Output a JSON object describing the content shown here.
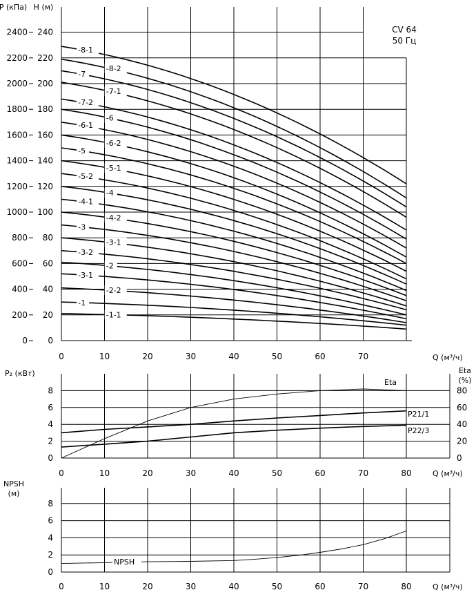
{
  "chart_data": [
    {
      "type": "line",
      "name": "head",
      "title": "",
      "legend": [
        "CV 64",
        "50 Гц"
      ],
      "xlabel": "Q (м³/ч)",
      "ylabel_left": "P (кПа)",
      "ylabel_right": "H (м)",
      "x_ticks": [
        0,
        10,
        20,
        30,
        40,
        50,
        60,
        70
      ],
      "y_ticks_H": [
        0,
        20,
        40,
        60,
        80,
        100,
        120,
        140,
        160,
        180,
        200,
        220,
        240
      ],
      "y_ticks_P": [
        0,
        200,
        400,
        600,
        800,
        1000,
        1200,
        1400,
        1600,
        1800,
        2000,
        2200,
        2400
      ],
      "xlim": [
        0,
        80
      ],
      "ylim": [
        0,
        260
      ],
      "grid": true,
      "series": [
        {
          "name": "-8-1",
          "h0": 229,
          "h80": 122
        },
        {
          "name": "-8-2",
          "h0": 219,
          "h80": 111
        },
        {
          "name": "-7",
          "h0": 210,
          "h80": 104
        },
        {
          "name": "-7-1",
          "h0": 201,
          "h80": 96
        },
        {
          "name": "-7-2",
          "h0": 188,
          "h80": 86
        },
        {
          "name": "-6",
          "h0": 180,
          "h80": 79
        },
        {
          "name": "-6-1",
          "h0": 170,
          "h80": 72
        },
        {
          "name": "-6-2",
          "h0": 160,
          "h80": 65
        },
        {
          "name": "-5",
          "h0": 150,
          "h80": 60
        },
        {
          "name": "-5-1",
          "h0": 140,
          "h80": 54
        },
        {
          "name": "-5-2",
          "h0": 130,
          "h80": 48
        },
        {
          "name": "-4",
          "h0": 120,
          "h80": 44
        },
        {
          "name": "-4-1",
          "h0": 110,
          "h80": 39
        },
        {
          "name": "-4-2",
          "h0": 100,
          "h80": 35
        },
        {
          "name": "-3",
          "h0": 90,
          "h80": 31
        },
        {
          "name": "-3-1",
          "h0": 80,
          "h80": 27
        },
        {
          "name": "-3-2",
          "h0": 70,
          "h80": 24
        },
        {
          "name": "-2",
          "h0": 61,
          "h80": 20
        },
        {
          "name": "-3-1",
          "h0": 52,
          "h80": 17
        },
        {
          "name": "-2-2",
          "h0": 41,
          "h80": 14
        },
        {
          "name": "-1",
          "h0": 30,
          "h80": 12
        },
        {
          "name": "-1-1",
          "h0": 21,
          "h80": 9
        }
      ]
    },
    {
      "type": "line",
      "name": "power-efficiency",
      "ylabel_left": "P₂ (кВт)",
      "ylabel_right": "Eta (%)",
      "xlabel": "Q (м³/ч)",
      "x_ticks": [
        0,
        10,
        20,
        30,
        40,
        50,
        60,
        70,
        80
      ],
      "y_ticks_left": [
        0,
        2,
        4,
        6,
        8
      ],
      "y_ticks_right": [
        0,
        20,
        40,
        60,
        80
      ],
      "xlim": [
        0,
        80
      ],
      "ylim_left": [
        0,
        8
      ],
      "grid": true,
      "series": [
        {
          "name": "Eta",
          "x": [
            0,
            10,
            20,
            30,
            40,
            50,
            60,
            70,
            80
          ],
          "y": [
            0,
            2.3,
            4.4,
            6.0,
            7.0,
            7.6,
            8.0,
            8.2,
            8.0
          ]
        },
        {
          "name": "P21/1",
          "x": [
            0,
            10,
            20,
            30,
            40,
            50,
            60,
            70,
            80
          ],
          "y": [
            3.0,
            3.4,
            3.7,
            4.0,
            4.4,
            4.75,
            5.05,
            5.35,
            5.6
          ]
        },
        {
          "name": "P22/3",
          "x": [
            0,
            10,
            20,
            30,
            40,
            50,
            60,
            70,
            80
          ],
          "y": [
            1.3,
            1.65,
            2.0,
            2.5,
            3.0,
            3.3,
            3.55,
            3.75,
            3.9
          ]
        }
      ]
    },
    {
      "type": "line",
      "name": "npsh",
      "ylabel": "NPSH (м)",
      "xlabel": "Q (м³/ч)",
      "x_ticks": [
        0,
        10,
        20,
        30,
        40,
        50,
        60,
        70,
        80
      ],
      "y_ticks": [
        0,
        2,
        4,
        6,
        8
      ],
      "xlim": [
        0,
        80
      ],
      "ylim": [
        0,
        10
      ],
      "grid": true,
      "series": [
        {
          "name": "NPSH",
          "x": [
            0,
            10,
            20,
            30,
            40,
            45,
            50,
            55,
            60,
            65,
            70,
            75,
            80
          ],
          "y": [
            1.0,
            1.1,
            1.2,
            1.25,
            1.35,
            1.5,
            1.7,
            1.95,
            2.3,
            2.7,
            3.2,
            3.9,
            4.8
          ]
        }
      ]
    }
  ]
}
